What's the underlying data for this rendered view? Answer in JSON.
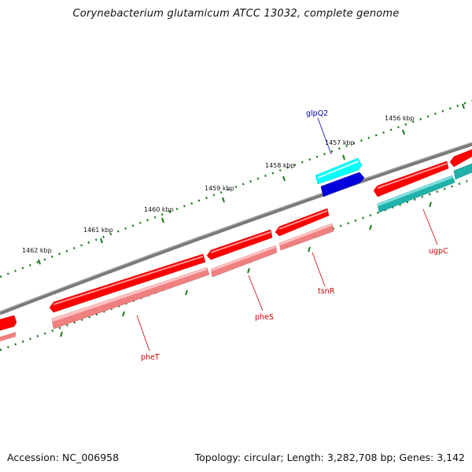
{
  "title": "Corynebacterium glutamicum ATCC 13032, complete genome",
  "footer": {
    "accession": "Accession: NC_006958",
    "summary": "Topology: circular; Length: 3,282,708 bp; Genes: 3,142"
  },
  "colors": {
    "backbone": "#7a7a7a",
    "tick": "#1a7a1a",
    "forward_cds": "#ff0000",
    "forward_cds_alt": "#00ffff",
    "reverse_other": "#0000dd",
    "reverse_cds": "#f08080",
    "reverse_cds_alt": "#20b2aa",
    "label_red": "#cc0000",
    "label_blue": "#0000aa"
  },
  "kbp_labels": [
    "1456 kbp",
    "1457 kbp",
    "1458 kbp",
    "1459 kbp",
    "1460 kbp",
    "1461 kbp",
    "1462 kbp"
  ],
  "gene_labels": [
    {
      "text": "glpQ2",
      "color": "blue"
    },
    {
      "text": "ugpC",
      "color": "red"
    },
    {
      "text": "tsnR",
      "color": "red"
    },
    {
      "text": "pheS",
      "color": "red"
    },
    {
      "text": "pheT",
      "color": "red"
    }
  ]
}
